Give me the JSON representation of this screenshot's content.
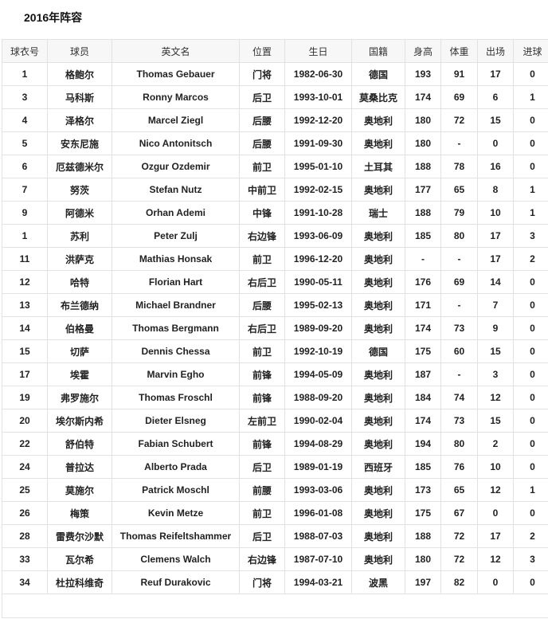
{
  "title": "2016年阵容",
  "columns": [
    "球衣号",
    "球员",
    "英文名",
    "位置",
    "生日",
    "国籍",
    "身高",
    "体重",
    "出场",
    "进球"
  ],
  "rows": [
    [
      "1",
      "格鲍尔",
      "Thomas Gebauer",
      "门将",
      "1982-06-30",
      "德国",
      "193",
      "91",
      "17",
      "0"
    ],
    [
      "3",
      "马科斯",
      "Ronny Marcos",
      "后卫",
      "1993-10-01",
      "莫桑比克",
      "174",
      "69",
      "6",
      "1"
    ],
    [
      "4",
      "泽格尔",
      "Marcel Ziegl",
      "后腰",
      "1992-12-20",
      "奥地利",
      "180",
      "72",
      "15",
      "0"
    ],
    [
      "5",
      "安东尼施",
      "Nico Antonitsch",
      "后腰",
      "1991-09-30",
      "奥地利",
      "180",
      "-",
      "0",
      "0"
    ],
    [
      "6",
      "厄兹德米尔",
      "Ozgur Ozdemir",
      "前卫",
      "1995-01-10",
      "土耳其",
      "188",
      "78",
      "16",
      "0"
    ],
    [
      "7",
      "努茨",
      "Stefan Nutz",
      "中前卫",
      "1992-02-15",
      "奥地利",
      "177",
      "65",
      "8",
      "1"
    ],
    [
      "9",
      "阿德米",
      "Orhan Ademi",
      "中锋",
      "1991-10-28",
      "瑞士",
      "188",
      "79",
      "10",
      "1"
    ],
    [
      "1",
      "苏利",
      "Peter Zulj",
      "右边锋",
      "1993-06-09",
      "奥地利",
      "185",
      "80",
      "17",
      "3"
    ],
    [
      "11",
      "洪萨克",
      "Mathias Honsak",
      "前卫",
      "1996-12-20",
      "奥地利",
      "-",
      "-",
      "17",
      "2"
    ],
    [
      "12",
      "哈特",
      "Florian Hart",
      "右后卫",
      "1990-05-11",
      "奥地利",
      "176",
      "69",
      "14",
      "0"
    ],
    [
      "13",
      "布兰德纳",
      "Michael Brandner",
      "后腰",
      "1995-02-13",
      "奥地利",
      "171",
      "-",
      "7",
      "0"
    ],
    [
      "14",
      "伯格曼",
      "Thomas Bergmann",
      "右后卫",
      "1989-09-20",
      "奥地利",
      "174",
      "73",
      "9",
      "0"
    ],
    [
      "15",
      "切萨",
      "Dennis Chessa",
      "前卫",
      "1992-10-19",
      "德国",
      "175",
      "60",
      "15",
      "0"
    ],
    [
      "17",
      "埃霍",
      "Marvin Egho",
      "前锋",
      "1994-05-09",
      "奥地利",
      "187",
      "-",
      "3",
      "0"
    ],
    [
      "19",
      "弗罗施尔",
      "Thomas Froschl",
      "前锋",
      "1988-09-20",
      "奥地利",
      "184",
      "74",
      "12",
      "0"
    ],
    [
      "20",
      "埃尔斯内希",
      "Dieter Elsneg",
      "左前卫",
      "1990-02-04",
      "奥地利",
      "174",
      "73",
      "15",
      "0"
    ],
    [
      "22",
      "舒伯特",
      "Fabian Schubert",
      "前锋",
      "1994-08-29",
      "奥地利",
      "194",
      "80",
      "2",
      "0"
    ],
    [
      "24",
      "普拉达",
      "Alberto Prada",
      "后卫",
      "1989-01-19",
      "西班牙",
      "185",
      "76",
      "10",
      "0"
    ],
    [
      "25",
      "莫施尔",
      "Patrick Moschl",
      "前腰",
      "1993-03-06",
      "奥地利",
      "173",
      "65",
      "12",
      "1"
    ],
    [
      "26",
      "梅策",
      "Kevin Metze",
      "前卫",
      "1996-01-08",
      "奥地利",
      "175",
      "67",
      "0",
      "0"
    ],
    [
      "28",
      "雷费尔沙默",
      "Thomas Reifeltshammer",
      "后卫",
      "1988-07-03",
      "奥地利",
      "188",
      "72",
      "17",
      "2"
    ],
    [
      "33",
      "瓦尔希",
      "Clemens Walch",
      "右边锋",
      "1987-07-10",
      "奥地利",
      "180",
      "72",
      "12",
      "3"
    ],
    [
      "34",
      "杜拉科维奇",
      "Reuf Durakovic",
      "门将",
      "1994-03-21",
      "波黑",
      "197",
      "82",
      "0",
      "0"
    ]
  ]
}
